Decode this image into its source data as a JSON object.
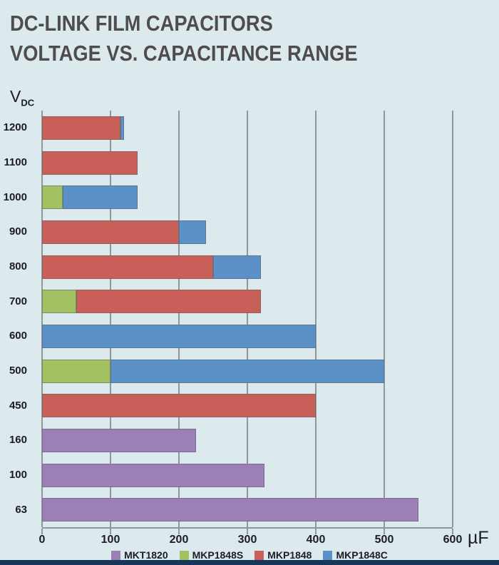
{
  "page": {
    "background_color": "#dce9ed",
    "bottom_strip_color": "#16365c"
  },
  "header": {
    "title_line1": "DC-LINK FILM CAPACITORS",
    "title_line2": "VOLTAGE VS. CAPACITANCE RANGE"
  },
  "axis": {
    "y_label_main": "V",
    "y_label_sub": "DC",
    "x_unit": "µF"
  },
  "chart_data": {
    "type": "bar",
    "orientation": "horizontal",
    "stacked": true,
    "title": "DC-LINK FILM CAPACITORS VOLTAGE VS. CAPACITANCE RANGE",
    "xlabel": "µF",
    "ylabel": "V DC",
    "xlim": [
      0,
      600
    ],
    "x_ticks": [
      0,
      100,
      200,
      300,
      400,
      500,
      600
    ],
    "grid": "vertical",
    "gridline_color": "#8e989b",
    "legend_position": "bottom",
    "series_colors": {
      "MKT1820": "#9b7fb5",
      "MKP1848S": "#a3c163",
      "MKP1848": "#c85f58",
      "MKP1848C": "#5b91c6"
    },
    "legend": [
      {
        "label": "MKT1820",
        "color": "#9b7fb5"
      },
      {
        "label": "MKP1848S",
        "color": "#a3c163"
      },
      {
        "label": "MKP1848",
        "color": "#c85f58"
      },
      {
        "label": "MKP1848C",
        "color": "#5b91c6"
      }
    ],
    "rows": [
      {
        "voltage": "1200",
        "segments": [
          {
            "series": "MKP1848",
            "from": 0,
            "to": 115
          },
          {
            "series": "MKP1848C",
            "from": 115,
            "to": 120
          }
        ]
      },
      {
        "voltage": "1100",
        "segments": [
          {
            "series": "MKP1848",
            "from": 0,
            "to": 140
          }
        ]
      },
      {
        "voltage": "1000",
        "segments": [
          {
            "series": "MKP1848S",
            "from": 0,
            "to": 30
          },
          {
            "series": "MKP1848C",
            "from": 30,
            "to": 140
          }
        ]
      },
      {
        "voltage": "900",
        "segments": [
          {
            "series": "MKP1848",
            "from": 0,
            "to": 200
          },
          {
            "series": "MKP1848C",
            "from": 200,
            "to": 240
          }
        ]
      },
      {
        "voltage": "800",
        "segments": [
          {
            "series": "MKP1848",
            "from": 0,
            "to": 250
          },
          {
            "series": "MKP1848C",
            "from": 250,
            "to": 320
          }
        ]
      },
      {
        "voltage": "700",
        "segments": [
          {
            "series": "MKP1848S",
            "from": 0,
            "to": 50
          },
          {
            "series": "MKP1848",
            "from": 50,
            "to": 320
          }
        ]
      },
      {
        "voltage": "600",
        "segments": [
          {
            "series": "MKP1848C",
            "from": 0,
            "to": 400
          }
        ]
      },
      {
        "voltage": "500",
        "segments": [
          {
            "series": "MKP1848S",
            "from": 0,
            "to": 100
          },
          {
            "series": "MKP1848C",
            "from": 100,
            "to": 500
          }
        ]
      },
      {
        "voltage": "450",
        "segments": [
          {
            "series": "MKP1848",
            "from": 0,
            "to": 400
          }
        ]
      },
      {
        "voltage": "160",
        "segments": [
          {
            "series": "MKT1820",
            "from": 0,
            "to": 225
          }
        ]
      },
      {
        "voltage": "100",
        "segments": [
          {
            "series": "MKT1820",
            "from": 0,
            "to": 325
          }
        ]
      },
      {
        "voltage": "63",
        "segments": [
          {
            "series": "MKT1820",
            "from": 0,
            "to": 550
          }
        ]
      }
    ]
  }
}
